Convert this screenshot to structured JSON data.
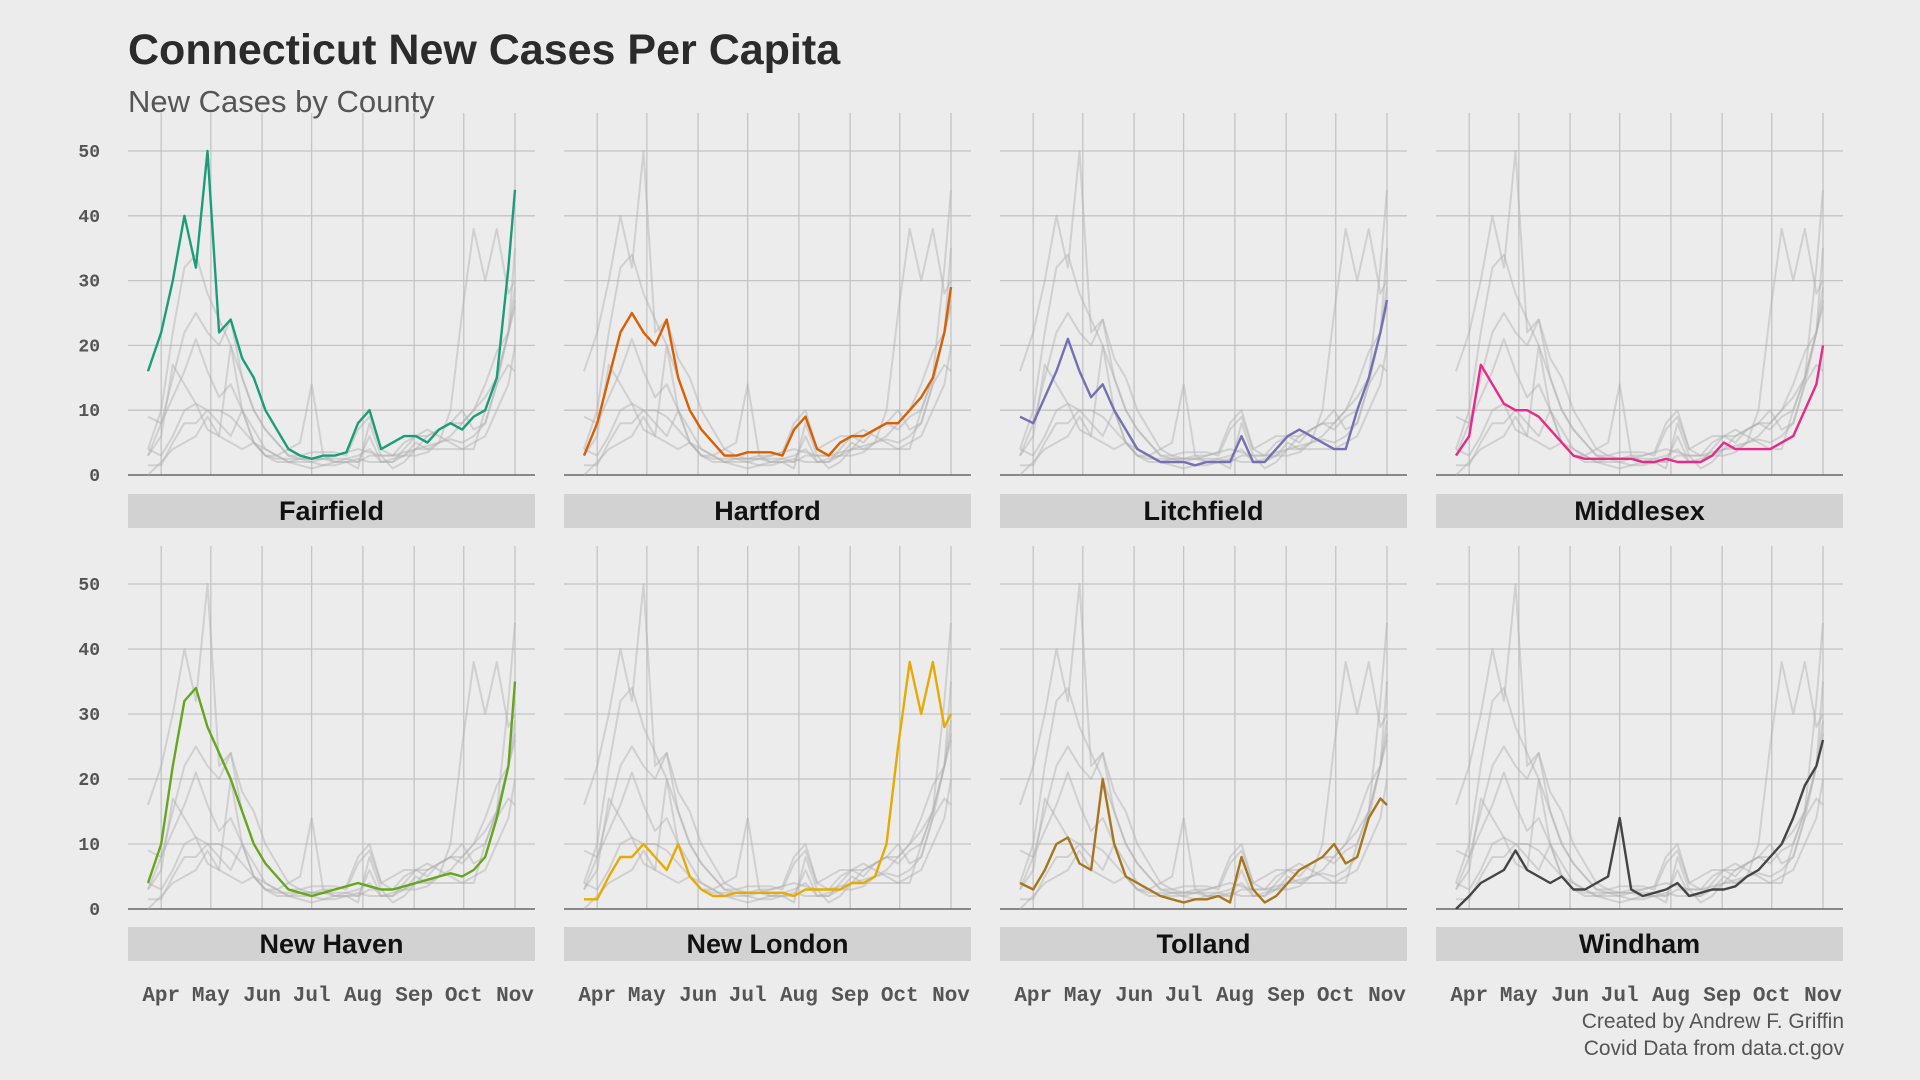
{
  "title": "Connecticut New Cases Per Capita",
  "subtitle": "New Cases by County",
  "caption": {
    "line1": "Created by Andrew F. Griffin",
    "line2": "Covid Data from data.ct.gov"
  },
  "colors": {
    "background": "#ececec",
    "grid": "#c4c4c4",
    "baseline": "#666666",
    "strip": "#d2d2d2",
    "ghost": "#b0b0b0"
  },
  "chart_data": {
    "type": "line",
    "layout": "small-multiples 2x4",
    "ylim": [
      0,
      50
    ],
    "yticks": [
      0,
      10,
      20,
      30,
      40,
      50
    ],
    "x_ticks": [
      "Apr",
      "May",
      "Jun",
      "Jul",
      "Aug",
      "Sep",
      "Oct",
      "Nov"
    ],
    "x_tick_dates": [
      "2020-04-01",
      "2020-05-01",
      "2020-06-01",
      "2020-07-01",
      "2020-08-01",
      "2020-09-01",
      "2020-10-01",
      "2020-11-01"
    ],
    "x_range": [
      "2020-03-24",
      "2020-11-01"
    ],
    "x": [
      "2020-03-24",
      "2020-04-01",
      "2020-04-08",
      "2020-04-15",
      "2020-04-22",
      "2020-04-29",
      "2020-05-06",
      "2020-05-13",
      "2020-05-20",
      "2020-05-27",
      "2020-06-03",
      "2020-06-10",
      "2020-06-17",
      "2020-06-24",
      "2020-07-01",
      "2020-07-08",
      "2020-07-15",
      "2020-07-22",
      "2020-07-29",
      "2020-08-05",
      "2020-08-12",
      "2020-08-19",
      "2020-08-26",
      "2020-09-02",
      "2020-09-09",
      "2020-09-16",
      "2020-09-23",
      "2020-09-30",
      "2020-10-07",
      "2020-10-14",
      "2020-10-21",
      "2020-10-28",
      "2020-11-01"
    ],
    "series": [
      {
        "name": "Fairfield",
        "color": "#1b9e77",
        "values": [
          16,
          22,
          30,
          40,
          32,
          50,
          22,
          24,
          18,
          15,
          10,
          7,
          4,
          3,
          2.5,
          3,
          3,
          3.5,
          8,
          10,
          4,
          5,
          6,
          6,
          5,
          7,
          8,
          7,
          9,
          10,
          15,
          32,
          44
        ]
      },
      {
        "name": "Hartford",
        "color": "#d95f02",
        "values": [
          3,
          8,
          15,
          22,
          25,
          22,
          20,
          24,
          15,
          10,
          7,
          5,
          3,
          3,
          3.5,
          3.5,
          3.5,
          3,
          7,
          9,
          4,
          3,
          5,
          6,
          6,
          7,
          8,
          8,
          10,
          12,
          15,
          22,
          29
        ]
      },
      {
        "name": "Litchfield",
        "color": "#7570b3",
        "values": [
          9,
          8,
          12,
          16,
          21,
          16,
          12,
          14,
          10,
          7,
          4,
          3,
          2,
          2,
          2,
          1.5,
          2,
          2,
          2,
          6,
          2,
          2,
          4,
          6,
          7,
          6,
          5,
          4,
          4,
          10,
          15,
          22,
          27
        ]
      },
      {
        "name": "Middlesex",
        "color": "#e7298a",
        "values": [
          3,
          6,
          17,
          14,
          11,
          10,
          10,
          9,
          7,
          5,
          3,
          2.5,
          2.5,
          2.5,
          2.5,
          2.5,
          2,
          2,
          2.5,
          2,
          2,
          2,
          3,
          5,
          4,
          4,
          4,
          4,
          5,
          6,
          10,
          14,
          20
        ]
      },
      {
        "name": "New Haven",
        "color": "#66a61e",
        "values": [
          4,
          10,
          22,
          32,
          34,
          28,
          24,
          20,
          15,
          10,
          7,
          5,
          3,
          2.5,
          2,
          2.5,
          3,
          3.5,
          4,
          3.5,
          3,
          3,
          3.5,
          4,
          4.5,
          5,
          5.5,
          5,
          6,
          8,
          14,
          22,
          35
        ]
      },
      {
        "name": "New London",
        "color": "#e6ab02",
        "values": [
          1.5,
          1.5,
          5,
          8,
          8,
          10,
          8,
          6,
          10,
          5,
          3,
          2,
          2,
          2.5,
          2.5,
          2.5,
          2.5,
          2.5,
          2,
          3,
          3,
          3,
          3,
          4,
          4,
          5,
          10,
          25,
          38,
          30,
          38,
          28,
          30
        ]
      },
      {
        "name": "Tolland",
        "color": "#a6761d",
        "values": [
          4,
          3,
          6,
          10,
          11,
          7,
          6,
          20,
          10,
          5,
          4,
          3,
          2,
          1.5,
          1,
          1.5,
          1.5,
          2,
          1,
          8,
          3,
          1,
          2,
          4,
          6,
          7,
          8,
          10,
          7,
          8,
          14,
          17,
          16
        ]
      },
      {
        "name": "Windham",
        "color": "#444444",
        "values": [
          0,
          2,
          4,
          5,
          6,
          9,
          6,
          5,
          4,
          5,
          3,
          3,
          4,
          5,
          14,
          3,
          2,
          2.5,
          3,
          4,
          2,
          2.5,
          3,
          3,
          3.5,
          5,
          6,
          8,
          10,
          14,
          19,
          22,
          26
        ]
      }
    ]
  }
}
